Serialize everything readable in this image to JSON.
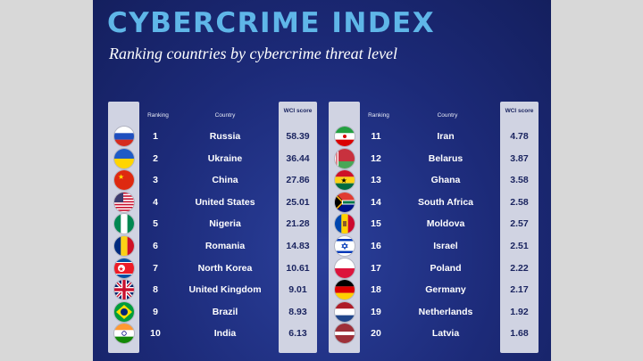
{
  "title": "CYBERCRIME INDEX",
  "subtitle": "Ranking countries by cybercrime threat level",
  "headers": {
    "ranking": "Ranking",
    "country": "Country",
    "score": "WCI score"
  },
  "chart_data": {
    "type": "table",
    "title": "CYBERCRIME INDEX",
    "subtitle": "Ranking countries by cybercrime threat level",
    "columns": [
      "Ranking",
      "Country",
      "WCI score"
    ],
    "rows": [
      {
        "rank": "1",
        "country": "Russia",
        "score": "58.39",
        "flag": "russia-flag-icon"
      },
      {
        "rank": "2",
        "country": "Ukraine",
        "score": "36.44",
        "flag": "ukraine-flag-icon"
      },
      {
        "rank": "3",
        "country": "China",
        "score": "27.86",
        "flag": "china-flag-icon"
      },
      {
        "rank": "4",
        "country": "United States",
        "score": "25.01",
        "flag": "usa-flag-icon"
      },
      {
        "rank": "5",
        "country": "Nigeria",
        "score": "21.28",
        "flag": "nigeria-flag-icon"
      },
      {
        "rank": "6",
        "country": "Romania",
        "score": "14.83",
        "flag": "romania-flag-icon"
      },
      {
        "rank": "7",
        "country": "North Korea",
        "score": "10.61",
        "flag": "north-korea-flag-icon"
      },
      {
        "rank": "8",
        "country": "United Kingdom",
        "score": "9.01",
        "flag": "uk-flag-icon"
      },
      {
        "rank": "9",
        "country": "Brazil",
        "score": "8.93",
        "flag": "brazil-flag-icon"
      },
      {
        "rank": "10",
        "country": "India",
        "score": "6.13",
        "flag": "india-flag-icon"
      },
      {
        "rank": "11",
        "country": "Iran",
        "score": "4.78",
        "flag": "iran-flag-icon"
      },
      {
        "rank": "12",
        "country": "Belarus",
        "score": "3.87",
        "flag": "belarus-flag-icon"
      },
      {
        "rank": "13",
        "country": "Ghana",
        "score": "3.58",
        "flag": "ghana-flag-icon"
      },
      {
        "rank": "14",
        "country": "South Africa",
        "score": "2.58",
        "flag": "south-africa-flag-icon"
      },
      {
        "rank": "15",
        "country": "Moldova",
        "score": "2.57",
        "flag": "moldova-flag-icon"
      },
      {
        "rank": "16",
        "country": "Israel",
        "score": "2.51",
        "flag": "israel-flag-icon"
      },
      {
        "rank": "17",
        "country": "Poland",
        "score": "2.22",
        "flag": "poland-flag-icon"
      },
      {
        "rank": "18",
        "country": "Germany",
        "score": "2.17",
        "flag": "germany-flag-icon"
      },
      {
        "rank": "19",
        "country": "Netherlands",
        "score": "1.92",
        "flag": "netherlands-flag-icon"
      },
      {
        "rank": "20",
        "country": "Latvia",
        "score": "1.68",
        "flag": "latvia-flag-icon"
      }
    ]
  },
  "colors": {
    "title": "#5fb6e8",
    "background": "#1c2a78",
    "strip": "#d0d3e2",
    "score_text": "#1b2560"
  }
}
